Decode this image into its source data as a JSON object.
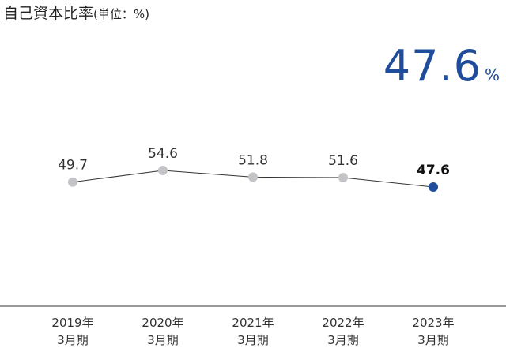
{
  "title": "自己資本比率",
  "title_unit": "(単位：%)",
  "highlight": {
    "value": "47.6",
    "unit": "%"
  },
  "colors": {
    "accent": "#1f4d9b",
    "point": "#c4c4c8",
    "line": "#333333",
    "axis": "#333333"
  },
  "chart_data": {
    "type": "line",
    "title": "自己資本比率",
    "unit": "%",
    "categories": [
      [
        "2019年",
        "3月期"
      ],
      [
        "2020年",
        "3月期"
      ],
      [
        "2021年",
        "3月期"
      ],
      [
        "2022年",
        "3月期"
      ],
      [
        "2023年",
        "3月期"
      ]
    ],
    "values": [
      49.7,
      54.6,
      51.8,
      51.6,
      47.6
    ],
    "data_labels": [
      "49.7",
      "54.6",
      "51.8",
      "51.6",
      "47.6"
    ],
    "highlight_index": 4,
    "grid": false,
    "legend": "none"
  }
}
